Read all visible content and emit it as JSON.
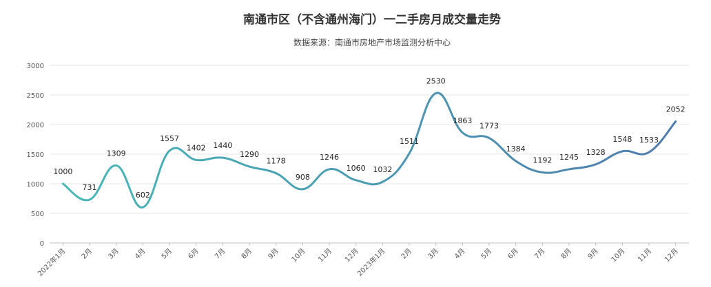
{
  "colors": {
    "line_start": "#47B8B8",
    "line_end": "#4F7CAE",
    "grid": "#E6E6E6",
    "axis": "#BFBFBF"
  },
  "chart_data": {
    "type": "line",
    "title": "南通市区（不含通州海门）一二手房月成交量走势",
    "subtitle": "数据来源：南通市房地产市场监测分析中心",
    "categories": [
      "2022年1月",
      "2月",
      "3月",
      "4月",
      "5月",
      "6月",
      "7月",
      "8月",
      "9月",
      "10月",
      "11月",
      "12月",
      "2023年1月",
      "2月",
      "3月",
      "4月",
      "5月",
      "6月",
      "7月",
      "8月",
      "9月",
      "10月",
      "11月",
      "12月"
    ],
    "values": [
      1000,
      731,
      1309,
      602,
      1557,
      1402,
      1440,
      1290,
      1178,
      908,
      1246,
      1060,
      1032,
      1511,
      2530,
      1863,
      1773,
      1384,
      1192,
      1245,
      1328,
      1548,
      1533,
      2052
    ],
    "ylim": [
      0,
      3000
    ],
    "yticks": [
      0,
      500,
      1000,
      1500,
      2000,
      2500,
      3000
    ],
    "grid": true,
    "legend": "none",
    "smooth": true
  }
}
